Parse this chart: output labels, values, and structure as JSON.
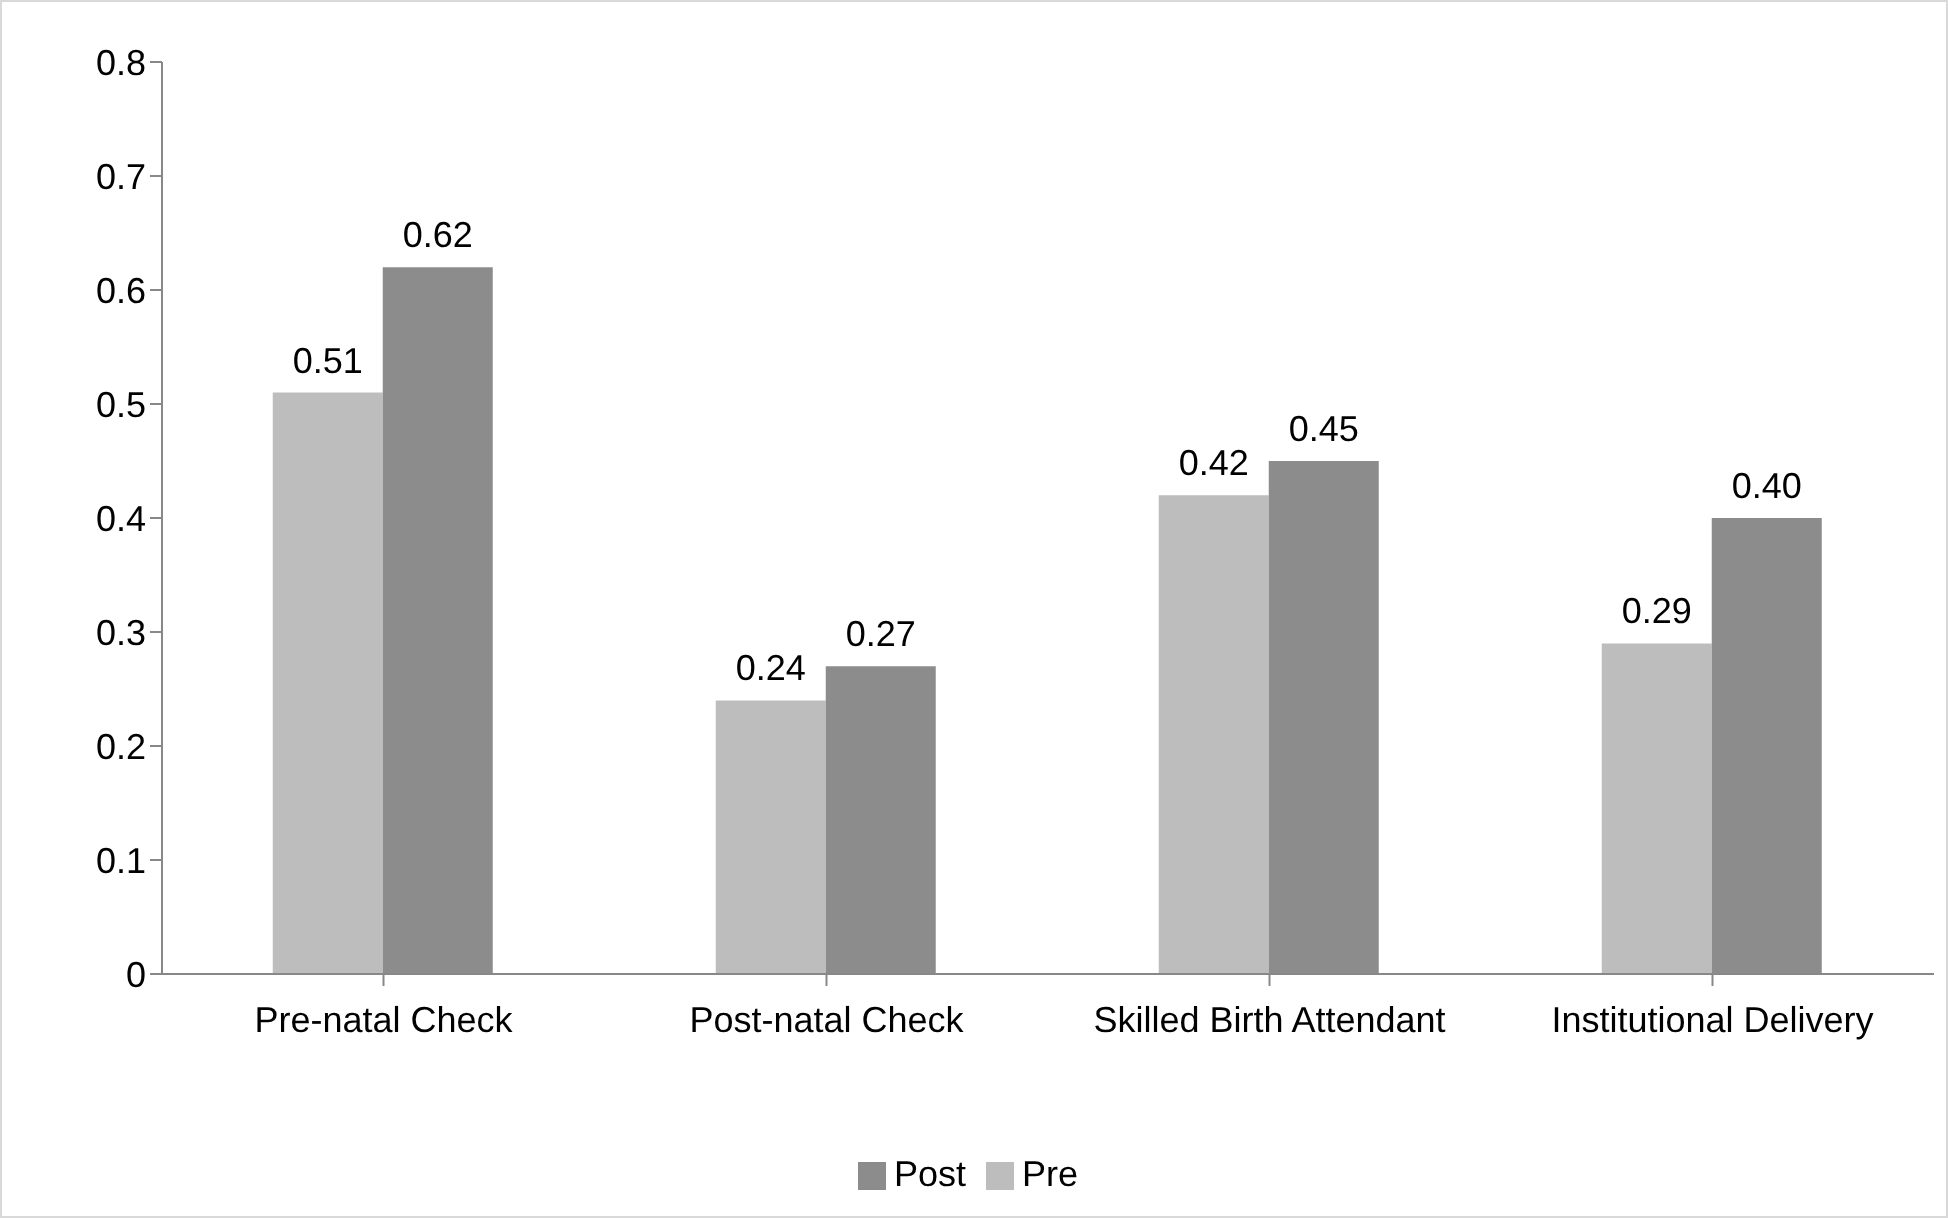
{
  "chart_data": {
    "type": "bar",
    "categories": [
      "Pre-natal Check",
      "Post-natal Check",
      "Skilled Birth Attendant",
      "Institutional Delivery"
    ],
    "series": [
      {
        "name": "Pre",
        "color": "#bdbdbd",
        "values": [
          0.51,
          0.24,
          0.42,
          0.29
        ],
        "value_labels": [
          "0.51",
          "0.24",
          "0.42",
          "0.29"
        ]
      },
      {
        "name": "Post",
        "color": "#8c8c8c",
        "values": [
          0.62,
          0.27,
          0.45,
          0.4
        ],
        "value_labels": [
          "0.62",
          "0.27",
          "0.45",
          "0.40"
        ]
      }
    ],
    "ylim": [
      0,
      0.8
    ],
    "yticks": [
      0,
      0.1,
      0.2,
      0.3,
      0.4,
      0.5,
      0.6,
      0.7,
      0.8
    ],
    "grid": false,
    "legend": "bottom"
  }
}
